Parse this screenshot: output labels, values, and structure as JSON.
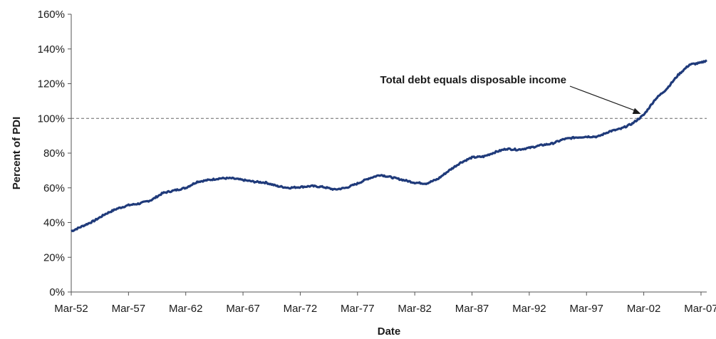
{
  "chart_data": {
    "type": "line",
    "title": "",
    "xlabel": "Date",
    "ylabel": "Percent of PDI",
    "x_tick_labels": [
      "Mar-52",
      "Mar-57",
      "Mar-62",
      "Mar-67",
      "Mar-72",
      "Mar-77",
      "Mar-82",
      "Mar-87",
      "Mar-92",
      "Mar-97",
      "Mar-02",
      "Mar-07"
    ],
    "y_tick_labels": [
      "0%",
      "20%",
      "40%",
      "60%",
      "80%",
      "100%",
      "120%",
      "140%",
      "160%"
    ],
    "ylim": [
      0,
      160
    ],
    "xlim": [
      "1952-03",
      "2007-09"
    ],
    "grid": false,
    "reference_line": {
      "value": 100,
      "style": "dashed"
    },
    "annotation": {
      "text": "Total debt equals disposable income",
      "points_to": {
        "x": "2001-12",
        "y": 101
      }
    },
    "colors": {
      "line": "#1f3a7a",
      "reference": "#666666",
      "axis": "#555555"
    },
    "series": [
      {
        "x": [
          "1952-03",
          "1953-03",
          "1954-03",
          "1955-03",
          "1956-03",
          "1957-03",
          "1958-03",
          "1959-03",
          "1960-03",
          "1961-03",
          "1962-03",
          "1963-03",
          "1964-03",
          "1965-03",
          "1966-03",
          "1967-03",
          "1968-03",
          "1969-03",
          "1970-03",
          "1971-03",
          "1972-03",
          "1973-03",
          "1974-03",
          "1975-03",
          "1976-03",
          "1977-03",
          "1978-03",
          "1979-03",
          "1980-03",
          "1981-03",
          "1982-03",
          "1983-03",
          "1984-03",
          "1985-03",
          "1986-03",
          "1987-03",
          "1988-03",
          "1989-03",
          "1990-03",
          "1991-03",
          "1992-03",
          "1993-03",
          "1994-03",
          "1995-03",
          "1996-03",
          "1997-03",
          "1998-03",
          "1999-03",
          "2000-03",
          "2001-03",
          "2002-03",
          "2003-03",
          "2004-03",
          "2005-03",
          "2006-03",
          "2007-03",
          "2007-09"
        ],
        "values": [
          35,
          38,
          41,
          45,
          48,
          50,
          51,
          53,
          57,
          58.5,
          60,
          63.5,
          64.5,
          65.5,
          65.5,
          64.5,
          63.5,
          63,
          61,
          60,
          60.5,
          61,
          60.5,
          59,
          60,
          62.5,
          65.5,
          67.5,
          66,
          64.5,
          63,
          62.5,
          65,
          70,
          74.5,
          77.5,
          78,
          80.5,
          82.5,
          82,
          83,
          84.5,
          85.5,
          88,
          89,
          89.5,
          89.5,
          92.5,
          94,
          97,
          102,
          111,
          117,
          125,
          131,
          132,
          133.5
        ]
      }
    ]
  }
}
